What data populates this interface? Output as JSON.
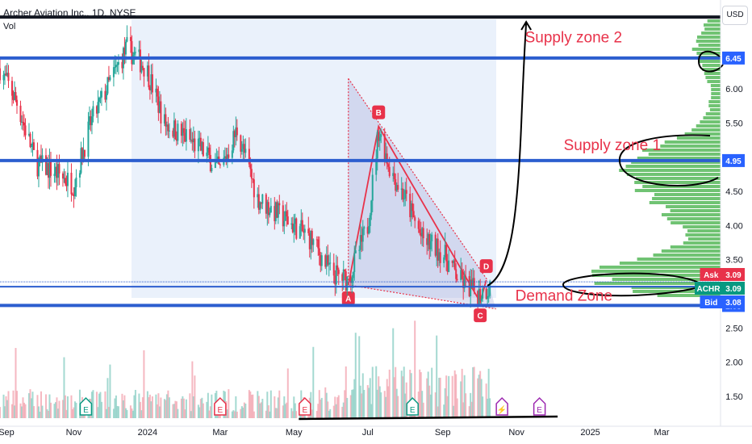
{
  "header": {
    "title": "Archer Aviation Inc., 1D, NYSE",
    "vol_label": "Vol",
    "currency_button": "USD"
  },
  "colors": {
    "up": "#26a69a",
    "down": "#e8324a",
    "level_line": "#2c5ecf",
    "pattern_fill": "#9c9fd4",
    "volume_profile": "#57b85a",
    "ask": "#e8324a",
    "ticker": "#089981",
    "bid": "#2962ff"
  },
  "chart_data": {
    "type": "candlestick",
    "x_axis": {
      "range": [
        "2023-09-01",
        "2025-04-10"
      ],
      "tick_labels": [
        {
          "label": "Sep",
          "date": "2023-09-01"
        },
        {
          "label": "Nov",
          "date": "2023-11-01"
        },
        {
          "label": "2024",
          "date": "2024-01-01"
        },
        {
          "label": "Mar",
          "date": "2024-03-01"
        },
        {
          "label": "May",
          "date": "2024-05-01"
        },
        {
          "label": "Jul",
          "date": "2024-07-01"
        },
        {
          "label": "Sep",
          "date": "2024-09-01"
        },
        {
          "label": "Nov",
          "date": "2024-11-01"
        },
        {
          "label": "2025",
          "date": "2025-01-01"
        },
        {
          "label": "Mar",
          "date": "2025-03-01"
        }
      ]
    },
    "y_axis": {
      "range": [
        1.3,
        7.2
      ],
      "tick_labels": [
        "1.50",
        "2.00",
        "2.50",
        "3.50",
        "4.00",
        "4.50",
        "5.50",
        "6.00"
      ]
    },
    "horizontal_levels": [
      {
        "value": 7.05,
        "label": ""
      },
      {
        "value": 6.45,
        "label": "6.45"
      },
      {
        "value": 4.95,
        "label": "4.95"
      },
      {
        "value": 3.14,
        "label": ""
      },
      {
        "value": 2.83,
        "label": "2.83"
      }
    ],
    "price_tags": [
      {
        "name": "Ask",
        "value": "3.09"
      },
      {
        "name": "ACHR",
        "value": "3.09"
      },
      {
        "name": "Bid",
        "value": "3.08"
      }
    ],
    "price_path": [
      {
        "date": "2023-09-01",
        "price": 6.3
      },
      {
        "date": "2023-09-15",
        "price": 5.8
      },
      {
        "date": "2023-10-01",
        "price": 4.9
      },
      {
        "date": "2023-10-15",
        "price": 4.8
      },
      {
        "date": "2023-11-01",
        "price": 4.6
      },
      {
        "date": "2023-11-15",
        "price": 5.5
      },
      {
        "date": "2023-12-01",
        "price": 6.1
      },
      {
        "date": "2023-12-15",
        "price": 6.6
      },
      {
        "date": "2023-12-31",
        "price": 6.3
      },
      {
        "date": "2024-01-15",
        "price": 5.5
      },
      {
        "date": "2024-02-01",
        "price": 5.3
      },
      {
        "date": "2024-02-15",
        "price": 5.1
      },
      {
        "date": "2024-03-01",
        "price": 4.8
      },
      {
        "date": "2024-03-15",
        "price": 5.4
      },
      {
        "date": "2024-04-01",
        "price": 4.4
      },
      {
        "date": "2024-04-15",
        "price": 4.2
      },
      {
        "date": "2024-05-01",
        "price": 4.0
      },
      {
        "date": "2024-05-15",
        "price": 3.8
      },
      {
        "date": "2024-06-01",
        "price": 3.3
      },
      {
        "date": "2024-06-15",
        "price": 3.2
      },
      {
        "date": "2024-07-01",
        "price": 4.0
      },
      {
        "date": "2024-07-10",
        "price": 5.4
      },
      {
        "date": "2024-07-20",
        "price": 4.8
      },
      {
        "date": "2024-08-01",
        "price": 4.4
      },
      {
        "date": "2024-08-15",
        "price": 3.8
      },
      {
        "date": "2024-09-01",
        "price": 3.6
      },
      {
        "date": "2024-09-15",
        "price": 3.2
      },
      {
        "date": "2024-10-01",
        "price": 3.0
      },
      {
        "date": "2024-10-10",
        "price": 3.1
      }
    ],
    "harmonic_pattern": [
      {
        "label": "A",
        "date": "2024-06-15",
        "price": 3.13
      },
      {
        "label": "B",
        "date": "2024-07-10",
        "price": 5.45
      },
      {
        "label": "C",
        "date": "2024-10-02",
        "price": 2.88
      },
      {
        "label": "D",
        "date": "2024-10-07",
        "price": 3.2
      }
    ],
    "annotations": [
      {
        "text": "Supply zone 2",
        "date": "2024-11-08",
        "price": 6.68
      },
      {
        "text": "Supply zone 1",
        "date": "2024-12-10",
        "price": 5.1
      },
      {
        "text": "Demand Zone",
        "date": "2024-10-31",
        "price": 2.9
      }
    ],
    "event_markers": [
      {
        "label": "E",
        "date": "2023-11-11",
        "color": "#089981"
      },
      {
        "label": "E",
        "date": "2024-03-01",
        "color": "#e8324a"
      },
      {
        "label": "E",
        "date": "2024-05-10",
        "color": "#e8324a"
      },
      {
        "label": "E",
        "date": "2024-08-07",
        "color": "#089981"
      },
      {
        "label": "⚡",
        "date": "2024-10-20",
        "color": "#9c27b0"
      },
      {
        "label": "E",
        "date": "2024-11-20",
        "color": "#9c27b0"
      }
    ],
    "volume_profile_note": "horizontal volume-by-price histogram on right edge, largest near 3.1-3.3 and 4.7-5.0",
    "grid": false
  }
}
